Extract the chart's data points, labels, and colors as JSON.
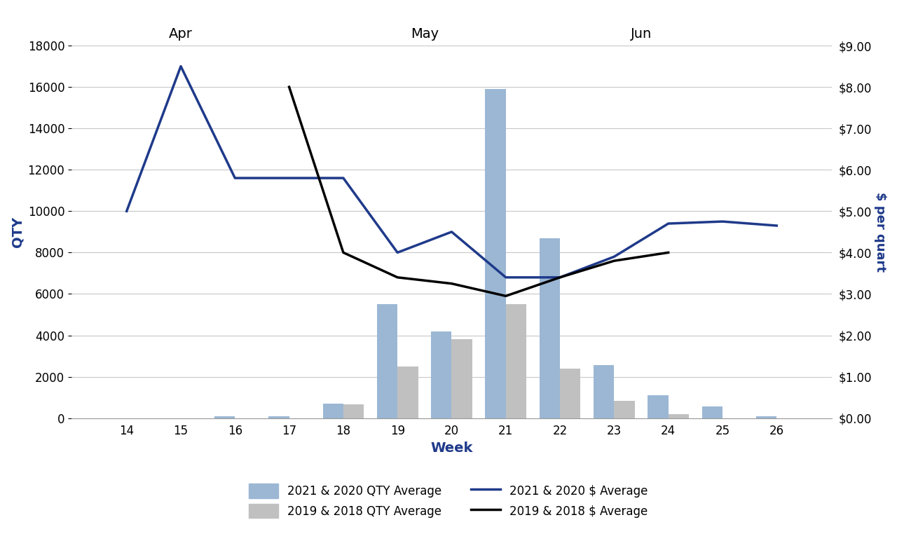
{
  "weeks": [
    14,
    15,
    16,
    17,
    18,
    19,
    20,
    21,
    22,
    23,
    24,
    25,
    26
  ],
  "qty_2021_2020": [
    0,
    0,
    100,
    100,
    700,
    5500,
    4200,
    15900,
    8700,
    2550,
    1100,
    550,
    100
  ],
  "qty_2019_2018": [
    0,
    0,
    0,
    0,
    650,
    2500,
    3800,
    5500,
    2400,
    850,
    200,
    0,
    0
  ],
  "price_2021_2020": [
    5.0,
    8.5,
    5.8,
    5.8,
    5.8,
    4.0,
    4.5,
    3.4,
    3.4,
    3.9,
    4.7,
    4.75,
    4.65
  ],
  "price_2019_2018": [
    null,
    null,
    null,
    8.0,
    4.0,
    3.4,
    3.25,
    2.95,
    3.4,
    3.8,
    4.0,
    null,
    null
  ],
  "bar_color_2021": "#9BB7D4",
  "bar_color_2019": "#C0C0C0",
  "line_color_2021": "#1F3A8A",
  "line_color_2019": "#000000",
  "ylabel_left": "QTY",
  "ylabel_right": "$ per quart",
  "xlabel": "Week",
  "ylim_left": [
    0,
    18000
  ],
  "ylim_right": [
    0,
    9.0
  ],
  "yticks_left": [
    0,
    2000,
    4000,
    6000,
    8000,
    10000,
    12000,
    14000,
    16000,
    18000
  ],
  "yticks_right": [
    0.0,
    1.0,
    2.0,
    3.0,
    4.0,
    5.0,
    6.0,
    7.0,
    8.0,
    9.0
  ],
  "month_labels": [
    {
      "label": "Apr",
      "x": 1
    },
    {
      "label": "May",
      "x": 5.5
    },
    {
      "label": "Jun",
      "x": 9.5
    }
  ],
  "legend_labels": [
    "2021 & 2020 QTY Average",
    "2019 & 2018 QTY Average",
    "2021 & 2020 $ Average",
    "2019 & 2018 $ Average"
  ],
  "xlabel_color": "#1F3A8A",
  "ylabel_left_color": "#1F3A8A",
  "ylabel_right_color": "#1F3A8A",
  "tick_label_color": "#000000",
  "background_color": "#FFFFFF",
  "grid_color": "#C8C8C8"
}
